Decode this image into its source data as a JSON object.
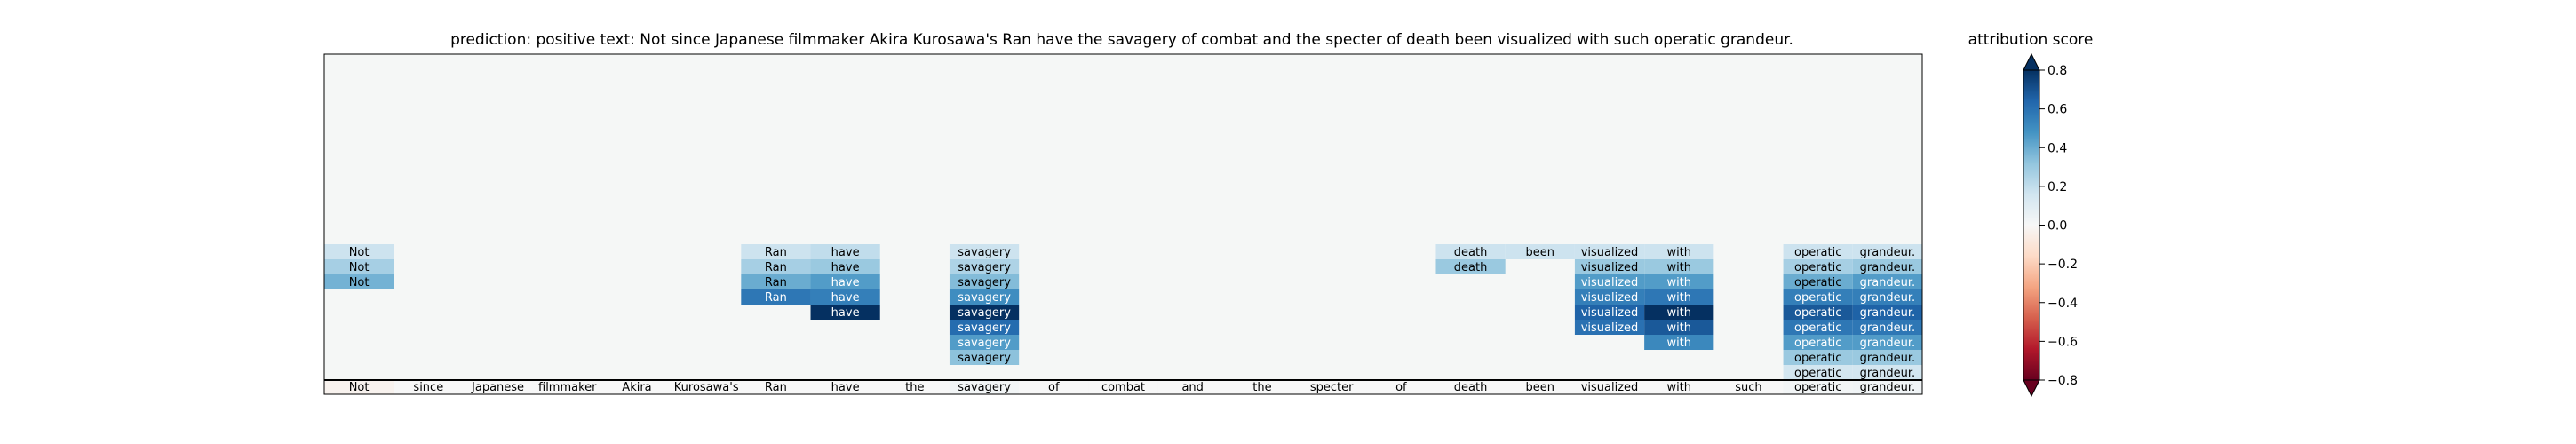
{
  "chart_data": [
    {
      "type": "heatmap",
      "title": "prediction:  positive     text:  Not since Japanese filmmaker Akira Kurosawa's Ran have the savagery of combat and the specter of death been visualized with such operatic grandeur.",
      "xlabel": "",
      "ylabel": "",
      "colormap": "RdBu",
      "value_range": [
        -0.8,
        0.8
      ],
      "background_color": "#f5f7f6",
      "tokens": [
        "Not",
        "since",
        "Japanese",
        "filmmaker",
        "Akira",
        "Kurosawa's",
        "Ran",
        "have",
        "the",
        "savagery",
        "of",
        "combat",
        "and",
        "the",
        "specter",
        "of",
        "death",
        "been",
        "visualized",
        "with",
        "such",
        "operatic",
        "grandeur."
      ],
      "base_row_values": [
        -0.03,
        0.0,
        0.0,
        0.0,
        0.0,
        0.0,
        0.0,
        0.0,
        0.0,
        0.02,
        0.0,
        0.0,
        0.0,
        0.0,
        0.0,
        0.0,
        0.0,
        0.0,
        0.0,
        0.0,
        0.0,
        0.02,
        0.03
      ],
      "stacked_cells": [
        {
          "token_index": 0,
          "level": 1,
          "label": "Not",
          "value": 0.17
        },
        {
          "token_index": 0,
          "level": 2,
          "label": "Not",
          "value": 0.27
        },
        {
          "token_index": 0,
          "level": 3,
          "label": "Not",
          "value": 0.38
        },
        {
          "token_index": 6,
          "level": 1,
          "label": "Ran",
          "value": 0.17
        },
        {
          "token_index": 6,
          "level": 2,
          "label": "Ran",
          "value": 0.27
        },
        {
          "token_index": 6,
          "level": 3,
          "label": "Ran",
          "value": 0.4
        },
        {
          "token_index": 6,
          "level": 4,
          "label": "Ran",
          "value": 0.58
        },
        {
          "token_index": 7,
          "level": 1,
          "label": "have",
          "value": 0.2
        },
        {
          "token_index": 7,
          "level": 2,
          "label": "have",
          "value": 0.3
        },
        {
          "token_index": 7,
          "level": 3,
          "label": "have",
          "value": 0.45
        },
        {
          "token_index": 7,
          "level": 4,
          "label": "have",
          "value": 0.55
        },
        {
          "token_index": 7,
          "level": 5,
          "label": "have",
          "value": 0.8
        },
        {
          "token_index": 9,
          "level": 1,
          "label": "savagery",
          "value": 0.17
        },
        {
          "token_index": 9,
          "level": 2,
          "label": "savagery",
          "value": 0.25
        },
        {
          "token_index": 9,
          "level": 3,
          "label": "savagery",
          "value": 0.35
        },
        {
          "token_index": 9,
          "level": 4,
          "label": "savagery",
          "value": 0.5
        },
        {
          "token_index": 9,
          "level": 5,
          "label": "savagery",
          "value": 0.82
        },
        {
          "token_index": 9,
          "level": 6,
          "label": "savagery",
          "value": 0.62
        },
        {
          "token_index": 9,
          "level": 7,
          "label": "savagery",
          "value": 0.45
        },
        {
          "token_index": 9,
          "level": 8,
          "label": "savagery",
          "value": 0.33
        },
        {
          "token_index": 16,
          "level": 1,
          "label": "death",
          "value": 0.17
        },
        {
          "token_index": 16,
          "level": 2,
          "label": "death",
          "value": 0.3
        },
        {
          "token_index": 17,
          "level": 1,
          "label": "been",
          "value": 0.17
        },
        {
          "token_index": 18,
          "level": 1,
          "label": "visualized",
          "value": 0.17
        },
        {
          "token_index": 18,
          "level": 2,
          "label": "visualized",
          "value": 0.3
        },
        {
          "token_index": 18,
          "level": 3,
          "label": "visualized",
          "value": 0.45
        },
        {
          "token_index": 18,
          "level": 4,
          "label": "visualized",
          "value": 0.55
        },
        {
          "token_index": 18,
          "level": 5,
          "label": "visualized",
          "value": 0.65
        },
        {
          "token_index": 18,
          "level": 6,
          "label": "visualized",
          "value": 0.6
        },
        {
          "token_index": 19,
          "level": 1,
          "label": "with",
          "value": 0.17
        },
        {
          "token_index": 19,
          "level": 2,
          "label": "with",
          "value": 0.3
        },
        {
          "token_index": 19,
          "level": 3,
          "label": "with",
          "value": 0.45
        },
        {
          "token_index": 19,
          "level": 4,
          "label": "with",
          "value": 0.58
        },
        {
          "token_index": 19,
          "level": 5,
          "label": "with",
          "value": 0.8
        },
        {
          "token_index": 19,
          "level": 6,
          "label": "with",
          "value": 0.68
        },
        {
          "token_index": 19,
          "level": 7,
          "label": "with",
          "value": 0.52
        },
        {
          "token_index": 21,
          "level": 1,
          "label": "operatic",
          "value": 0.17
        },
        {
          "token_index": 21,
          "level": 2,
          "label": "operatic",
          "value": 0.27
        },
        {
          "token_index": 21,
          "level": 3,
          "label": "operatic",
          "value": 0.4
        },
        {
          "token_index": 21,
          "level": 4,
          "label": "operatic",
          "value": 0.55
        },
        {
          "token_index": 21,
          "level": 5,
          "label": "operatic",
          "value": 0.68
        },
        {
          "token_index": 21,
          "level": 6,
          "label": "operatic",
          "value": 0.58
        },
        {
          "token_index": 21,
          "level": 7,
          "label": "operatic",
          "value": 0.45
        },
        {
          "token_index": 21,
          "level": 8,
          "label": "operatic",
          "value": 0.3
        },
        {
          "token_index": 21,
          "level": 9,
          "label": "operatic",
          "value": 0.15
        },
        {
          "token_index": 22,
          "level": 1,
          "label": "grandeur.",
          "value": 0.17
        },
        {
          "token_index": 22,
          "level": 2,
          "label": "grandeur.",
          "value": 0.3
        },
        {
          "token_index": 22,
          "level": 3,
          "label": "grandeur.",
          "value": 0.45
        },
        {
          "token_index": 22,
          "level": 4,
          "label": "grandeur.",
          "value": 0.55
        },
        {
          "token_index": 22,
          "level": 5,
          "label": "grandeur.",
          "value": 0.65
        },
        {
          "token_index": 22,
          "level": 6,
          "label": "grandeur.",
          "value": 0.58
        },
        {
          "token_index": 22,
          "level": 7,
          "label": "grandeur.",
          "value": 0.45
        },
        {
          "token_index": 22,
          "level": 8,
          "label": "grandeur.",
          "value": 0.3
        },
        {
          "token_index": 22,
          "level": 9,
          "label": "grandeur.",
          "value": 0.15
        }
      ]
    },
    {
      "type": "heatmap",
      "title": "attribution score",
      "colorbar": true,
      "ylim": [
        -0.8,
        0.8
      ],
      "ticks": [
        -0.8,
        -0.6,
        -0.4,
        -0.2,
        0.0,
        0.2,
        0.4,
        0.6,
        0.8
      ],
      "tick_labels": [
        "−0.8",
        "−0.6",
        "−0.4",
        "−0.2",
        "0.0",
        "0.2",
        "0.4",
        "0.6",
        "0.8"
      ],
      "extend": "both"
    }
  ]
}
